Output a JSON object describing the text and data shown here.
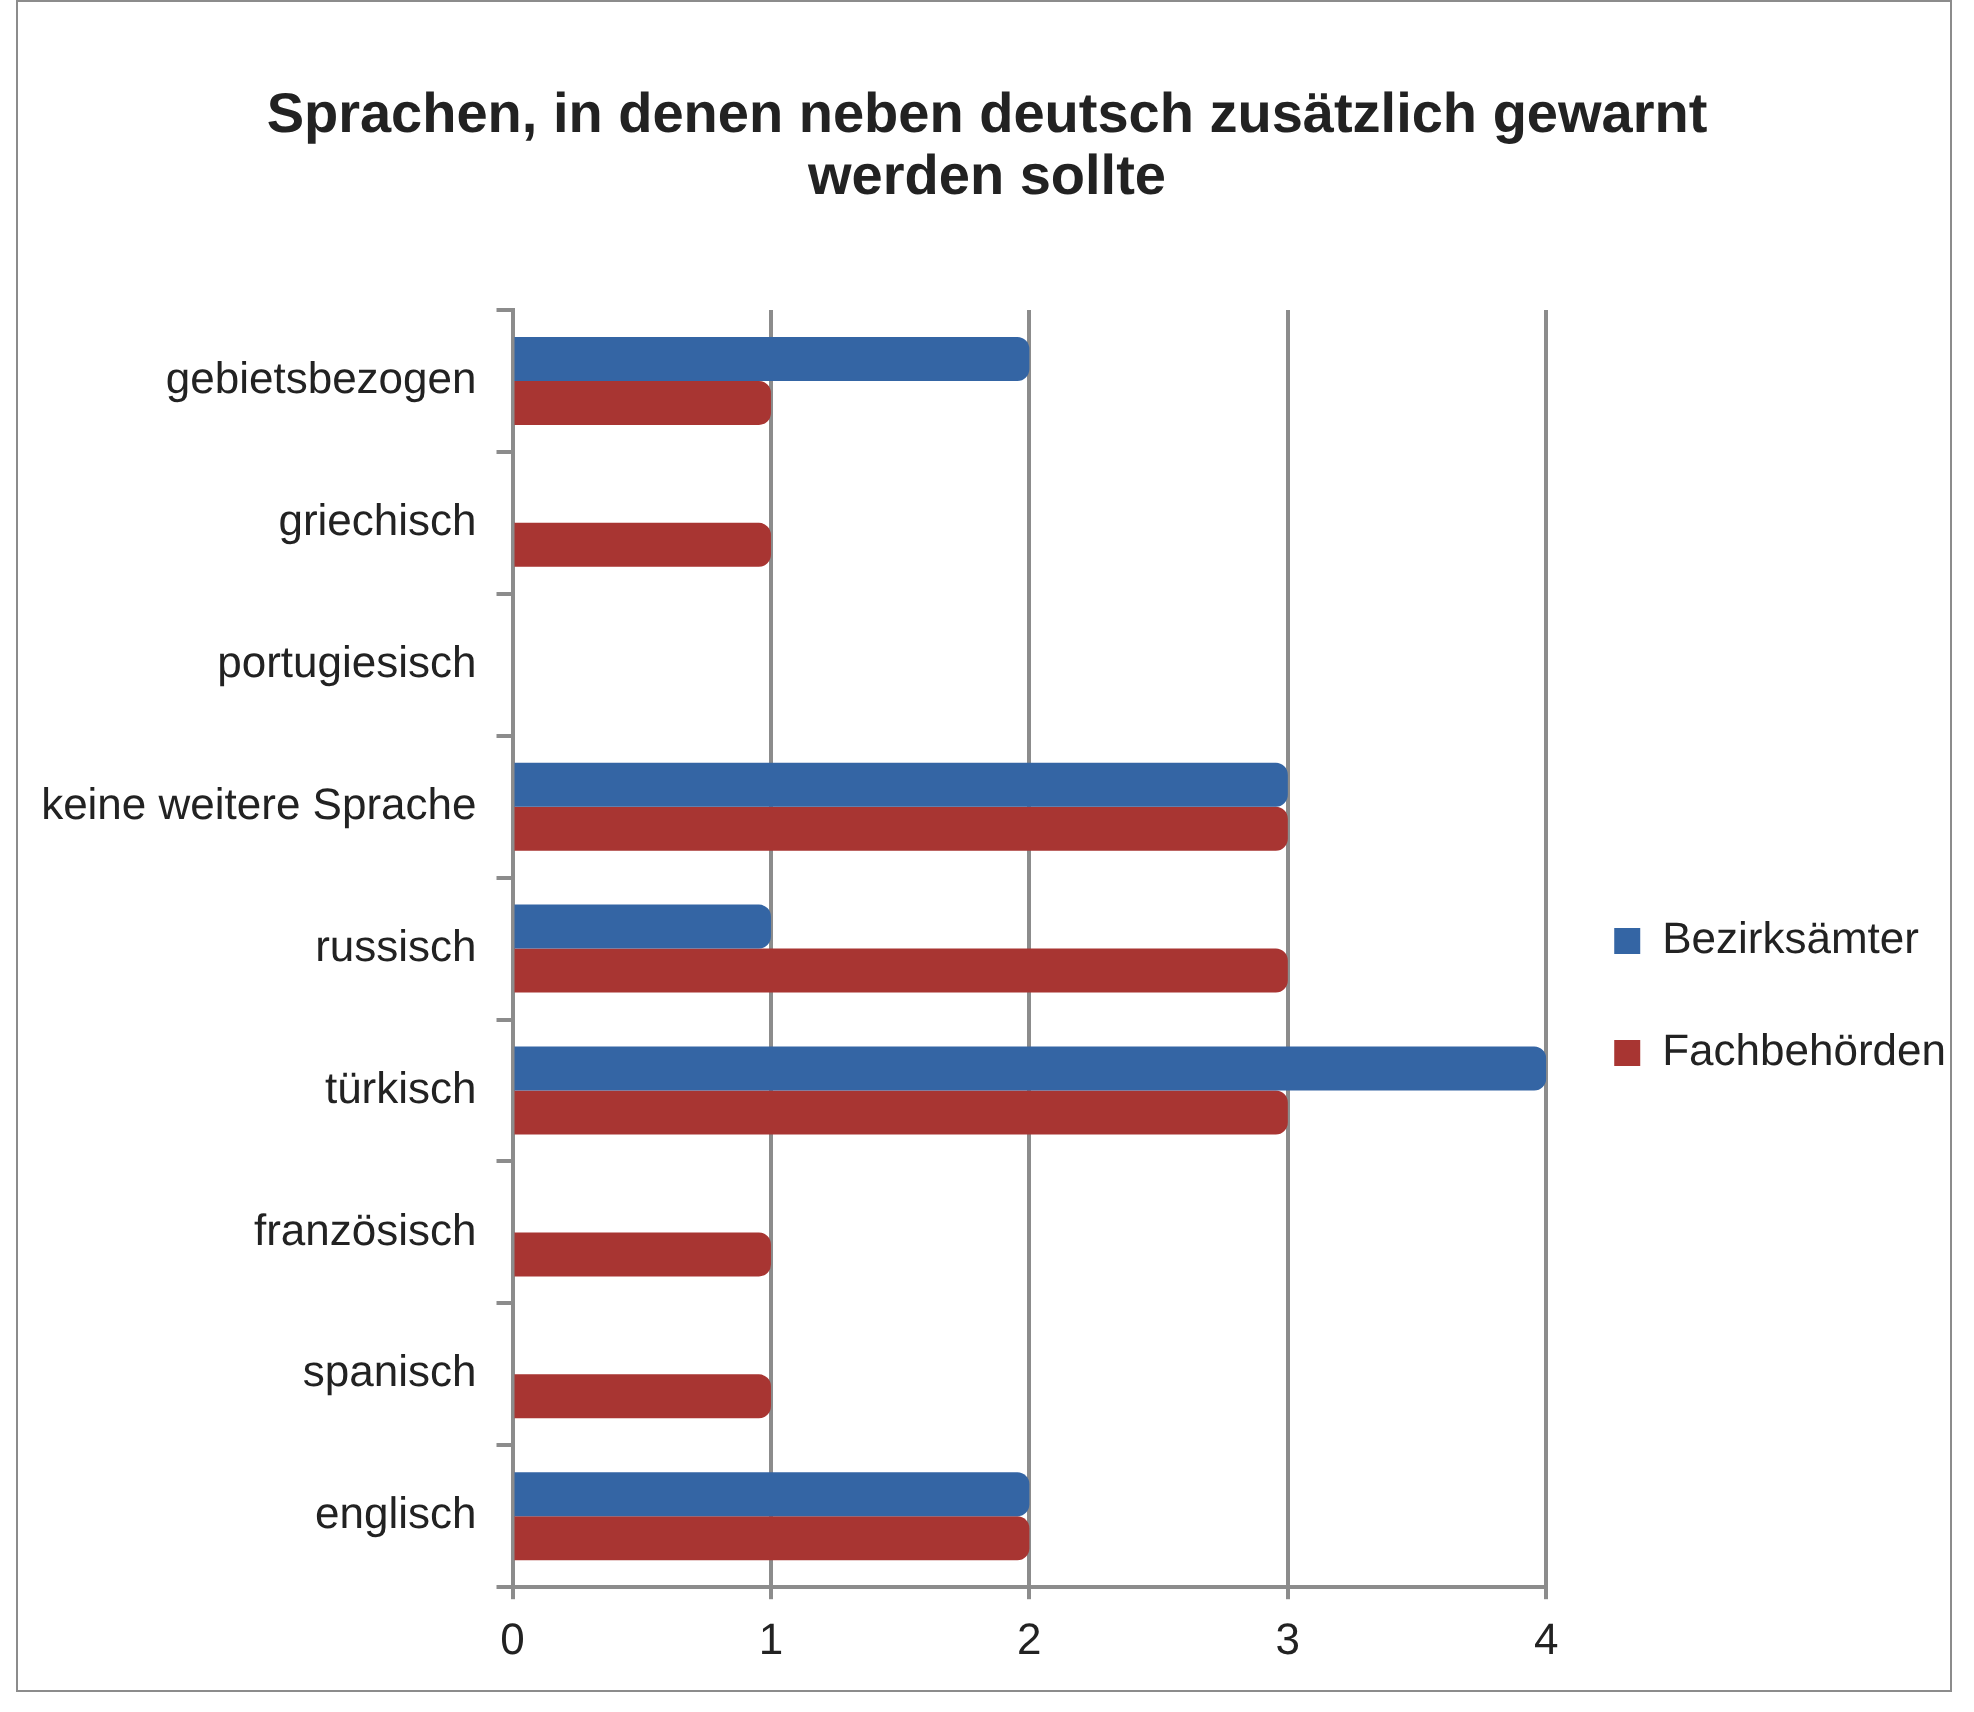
{
  "chart_data": {
    "type": "bar",
    "title": "Sprachen, in denen neben deutsch zusätzlich gewarnt werden sollte",
    "orientation": "horizontal",
    "categories": [
      "gebietsbezogen",
      "griechisch",
      "portugiesisch",
      "keine weitere Sprache",
      "russisch",
      "türkisch",
      "französisch",
      "spanisch",
      "englisch"
    ],
    "series": [
      {
        "name": "Bezirksämter",
        "color": "#3465a4",
        "values": [
          2,
          0,
          0,
          3,
          1,
          4,
          0,
          0,
          2
        ]
      },
      {
        "name": "Fachbehörden",
        "color": "#a83532",
        "values": [
          1,
          1,
          0,
          3,
          3,
          3,
          1,
          1,
          2
        ]
      }
    ],
    "xlim": [
      0,
      4
    ],
    "xticks": [
      0,
      1,
      2,
      3,
      4
    ],
    "grid": "x",
    "legend": "right"
  }
}
